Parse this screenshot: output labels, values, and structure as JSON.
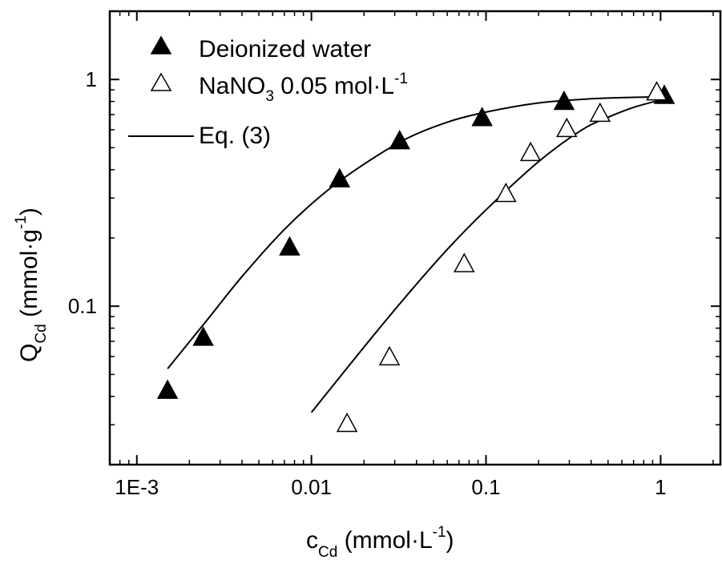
{
  "chart_data": {
    "type": "scatter",
    "xscale": "log",
    "yscale": "log",
    "xlim": [
      0.0007,
      2.2
    ],
    "ylim": [
      0.02,
      2.0
    ],
    "xticks": [
      {
        "value": 0.001,
        "label": "1E-3"
      },
      {
        "value": 0.01,
        "label": "0.01"
      },
      {
        "value": 0.1,
        "label": "0.1"
      },
      {
        "value": 1,
        "label": "1"
      }
    ],
    "yticks": [
      {
        "value": 0.1,
        "label": "0.1"
      },
      {
        "value": 1,
        "label": "1"
      }
    ],
    "xlabel": {
      "main": "c",
      "sub": "Cd",
      "unit": " (mmol·L",
      "sup": "-1",
      "close": ")"
    },
    "ylabel": {
      "main": "Q",
      "sub": "Cd",
      "unit": " (mmol·g",
      "sup": "-1",
      "close": ")"
    },
    "grid": false,
    "legend_position": "top-left",
    "legend": [
      {
        "label": "Deionized water",
        "marker": "filled-triangle"
      },
      {
        "label": "NaNO",
        "sub": "3",
        "rest": " 0.05 mol·L",
        "sup": "-1",
        "marker": "open-triangle"
      },
      {
        "label": "Eq. (3)",
        "marker": "line"
      }
    ],
    "series": [
      {
        "name": "Deionized water",
        "marker": "filled-triangle",
        "x": [
          0.0015,
          0.0024,
          0.0075,
          0.0145,
          0.032,
          0.095,
          0.28,
          1.05
        ],
        "y": [
          0.042,
          0.072,
          0.18,
          0.36,
          0.53,
          0.67,
          0.79,
          0.84
        ]
      },
      {
        "name": "NaNO3 0.05 mol·L-1",
        "marker": "open-triangle",
        "x": [
          0.016,
          0.028,
          0.075,
          0.13,
          0.18,
          0.29,
          0.45,
          0.95
        ],
        "y": [
          0.03,
          0.059,
          0.152,
          0.31,
          0.47,
          0.6,
          0.7,
          0.87
        ]
      }
    ],
    "fits": [
      {
        "name": "Eq. (3)",
        "x": [
          0.0015,
          0.0025,
          0.004,
          0.007,
          0.012,
          0.02,
          0.035,
          0.06,
          0.1,
          0.2,
          0.4,
          0.7,
          1.0
        ],
        "y": [
          0.053,
          0.086,
          0.135,
          0.218,
          0.318,
          0.423,
          0.548,
          0.648,
          0.718,
          0.788,
          0.822,
          0.834,
          0.838
        ]
      },
      {
        "name": "Eq. (3)",
        "x": [
          0.01,
          0.02,
          0.035,
          0.06,
          0.1,
          0.2,
          0.35,
          0.5,
          0.7,
          1.0
        ],
        "y": [
          0.034,
          0.066,
          0.111,
          0.178,
          0.266,
          0.434,
          0.596,
          0.681,
          0.753,
          0.812
        ]
      }
    ]
  }
}
